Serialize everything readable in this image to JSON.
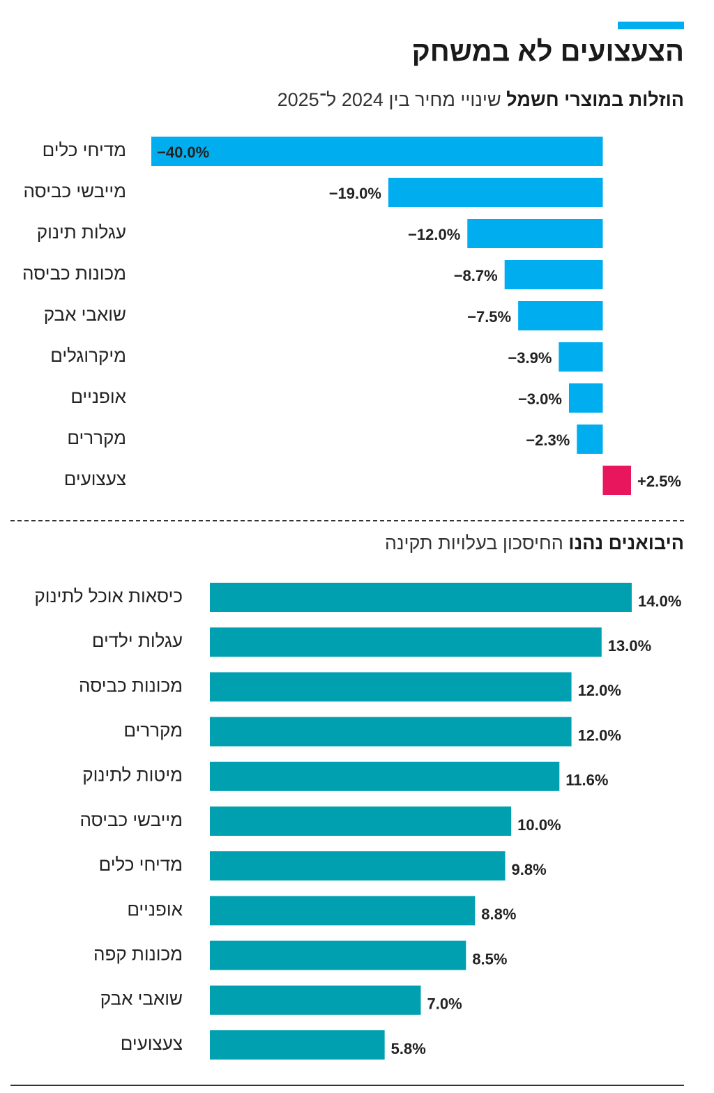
{
  "title": "הצעצועים לא במשחק",
  "chart_data": [
    {
      "type": "hbar",
      "title": "הוזלות במוצרי חשמל",
      "subtitle": "שינויי מחיר בין 2024 ל־2025",
      "categories": [
        "מדיחי כלים",
        "מייבשי כביסה",
        "עגלות תינוק",
        "מכונות כביסה",
        "שואבי אבק",
        "מיקרוגלים",
        "אופניים",
        "מקררים",
        "צעצועים"
      ],
      "values": [
        -40.0,
        -19.0,
        -12.0,
        -8.7,
        -7.5,
        -3.9,
        -3.0,
        -2.3,
        2.5
      ],
      "value_labels": [
        "−40.0%",
        "−19.0%",
        "−12.0%",
        "−8.7%",
        "−7.5%",
        "−3.9%",
        "−3.0%",
        "−2.3%",
        "+2.5%"
      ],
      "colors": [
        "#00aeef",
        "#00aeef",
        "#00aeef",
        "#00aeef",
        "#00aeef",
        "#00aeef",
        "#00aeef",
        "#00aeef",
        "#e8175d"
      ]
    },
    {
      "type": "hbar",
      "title": "היבואנים נהנו",
      "subtitle": "החיסכון בעלויות תקינה",
      "categories": [
        "כיסאות אוכל לתינוק",
        "עגלות ילדים",
        "מכונות כביסה",
        "מקררים",
        "מיטות לתינוק",
        "מייבשי כביסה",
        "מדיחי כלים",
        "אופניים",
        "מכונות קפה",
        "שואבי אבק",
        "צעצועים"
      ],
      "values": [
        14.0,
        13.0,
        12.0,
        12.0,
        11.6,
        10.0,
        9.8,
        8.8,
        8.5,
        7.0,
        5.8
      ],
      "value_labels": [
        "14.0%",
        "13.0%",
        "12.0%",
        "12.0%",
        "11.6%",
        "10.0%",
        "9.8%",
        "8.8%",
        "8.5%",
        "7.0%",
        "5.8%"
      ],
      "colors": [
        "#00a0b0",
        "#00a0b0",
        "#00a0b0",
        "#00a0b0",
        "#00a0b0",
        "#00a0b0",
        "#00a0b0",
        "#00a0b0",
        "#00a0b0",
        "#00a0b0",
        "#00a0b0"
      ]
    }
  ]
}
